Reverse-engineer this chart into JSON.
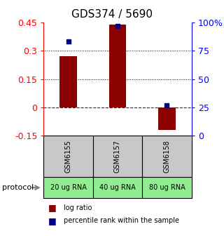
{
  "title": "GDS374 / 5690",
  "samples": [
    "GSM6155",
    "GSM6157",
    "GSM6158"
  ],
  "protocols": [
    "20 ug RNA",
    "40 ug RNA",
    "80 ug RNA"
  ],
  "log_ratios": [
    0.27,
    0.44,
    -0.12
  ],
  "percentile_ranks": [
    83,
    97,
    27
  ],
  "ylim_left": [
    -0.15,
    0.45
  ],
  "ylim_right": [
    0,
    100
  ],
  "yticks_left": [
    -0.15,
    0,
    0.15,
    0.3,
    0.45
  ],
  "yticks_right": [
    0,
    25,
    50,
    75,
    100
  ],
  "ytick_labels_left": [
    "-0.15",
    "0",
    "0.15",
    "0.3",
    "0.45"
  ],
  "ytick_labels_right": [
    "0",
    "25",
    "50",
    "75",
    "100%"
  ],
  "bar_color": "#8B0000",
  "dot_color": "#00008B",
  "gray_box_color": "#C8C8C8",
  "green_box_color": "#90EE90",
  "hline_color": "#8B0000",
  "grid_color": "#000000",
  "title_fontsize": 11,
  "axis_fontsize": 9,
  "label_fontsize": 7
}
